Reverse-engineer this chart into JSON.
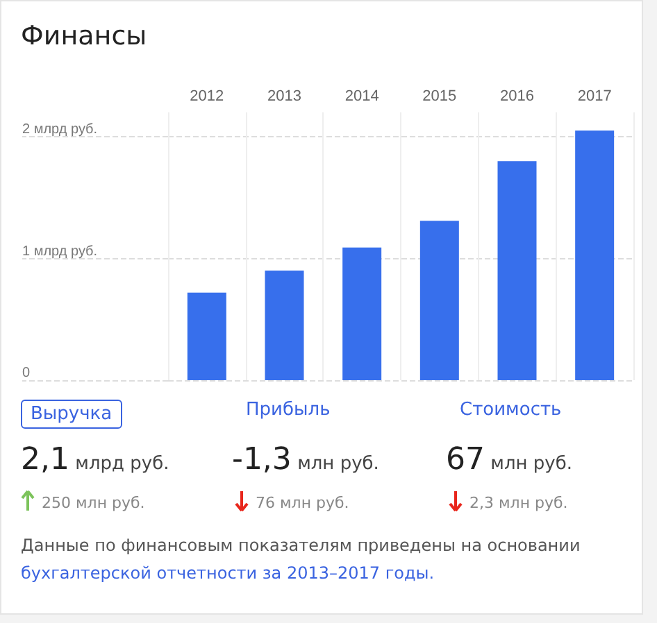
{
  "chart_data": {
    "type": "bar",
    "title": "Финансы",
    "categories": [
      "2012",
      "2013",
      "2014",
      "2015",
      "2016",
      "2017"
    ],
    "values": [
      0.72,
      0.9,
      1.09,
      1.31,
      1.8,
      2.05
    ],
    "color": "#376fec",
    "ylim": [
      0,
      2.2
    ],
    "yticks": [
      {
        "value": 0,
        "label": "0"
      },
      {
        "value": 1,
        "label": "1 млрд руб."
      },
      {
        "value": 2,
        "label": "2 млрд руб."
      }
    ],
    "grid": true,
    "annotations": [
      "Выручка",
      "Прибыль",
      "Стоимость",
      "2,1",
      "млрд руб.",
      "250 млн руб.",
      "-1,3",
      "млн руб.",
      "76 млн руб.",
      "67",
      "млн руб.",
      "2,3 млн руб.",
      "Данные по финансовым показателям приведены на основании",
      "бухгалтерской отчетности за 2013–2017 годы."
    ]
  }
}
